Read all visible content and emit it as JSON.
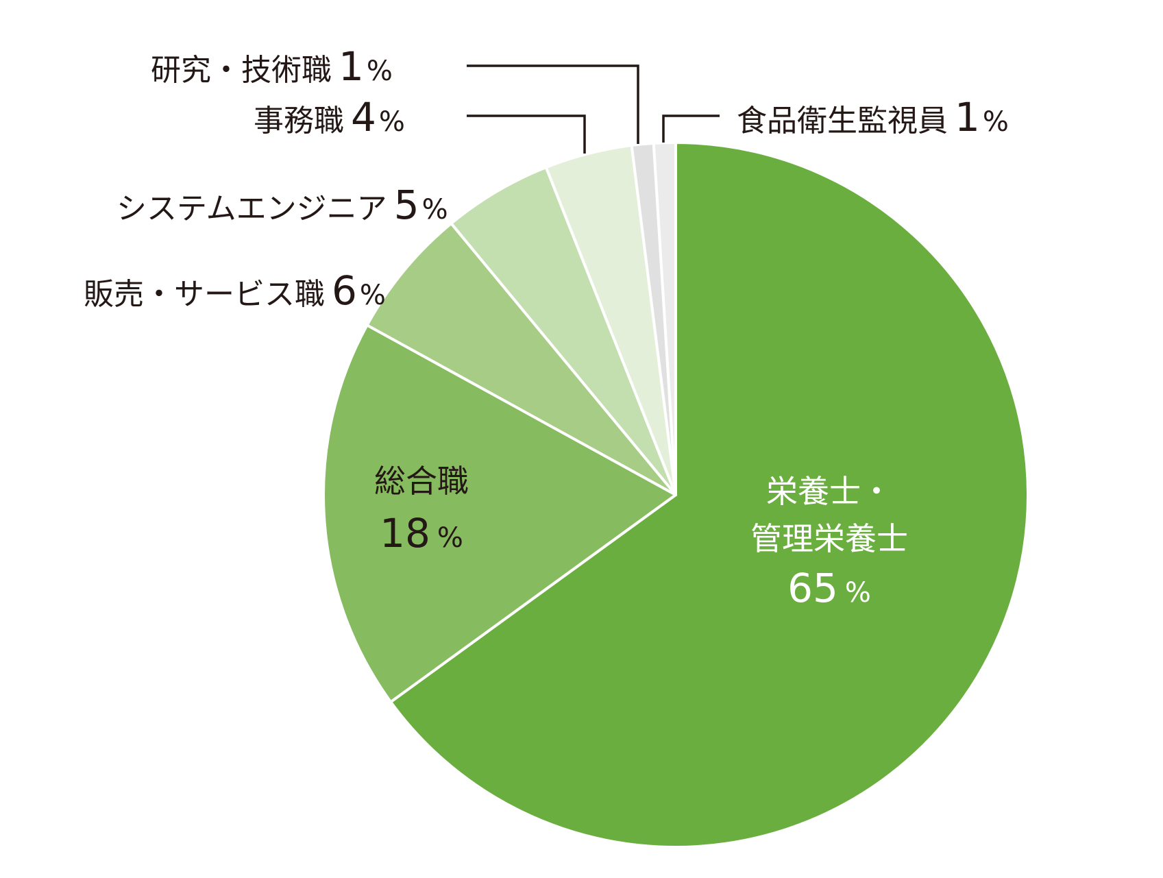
{
  "chart_data": {
    "type": "pie",
    "title": "",
    "start_angle": "12 o'clock, clockwise",
    "categories": [
      "栄養士・管理栄養士",
      "総合職",
      "販売・サービス職",
      "システムエンジニア",
      "事務職",
      "研究・技術職",
      "食品衛生監視員"
    ],
    "values": [
      65,
      18,
      6,
      5,
      4,
      1,
      1
    ],
    "unit": "%",
    "colors": [
      "#6aae3f",
      "#87bb5f",
      "#a6cc85",
      "#c3deaf",
      "#e4efda",
      "#e0e0e0",
      "#ebebeb"
    ],
    "legend": "none (direct labels)"
  },
  "labels": {
    "main": {
      "line1": "栄養士・",
      "line2": "管理栄養士",
      "value": "65",
      "pct": "%"
    },
    "sogo": {
      "line1": "総合職",
      "value": "18",
      "pct": "%"
    },
    "hanbai": {
      "name": "販売・サービス職",
      "value": "6",
      "pct": "%"
    },
    "system": {
      "name": "システムエンジニア",
      "value": "5",
      "pct": "%"
    },
    "jimu": {
      "name": "事務職",
      "value": "4",
      "pct": "%"
    },
    "kenkyu": {
      "name": "研究・技術職",
      "value": "1",
      "pct": "%"
    },
    "shokuhin": {
      "name": "食品衛生監視員",
      "value": "1",
      "pct": "%"
    }
  }
}
